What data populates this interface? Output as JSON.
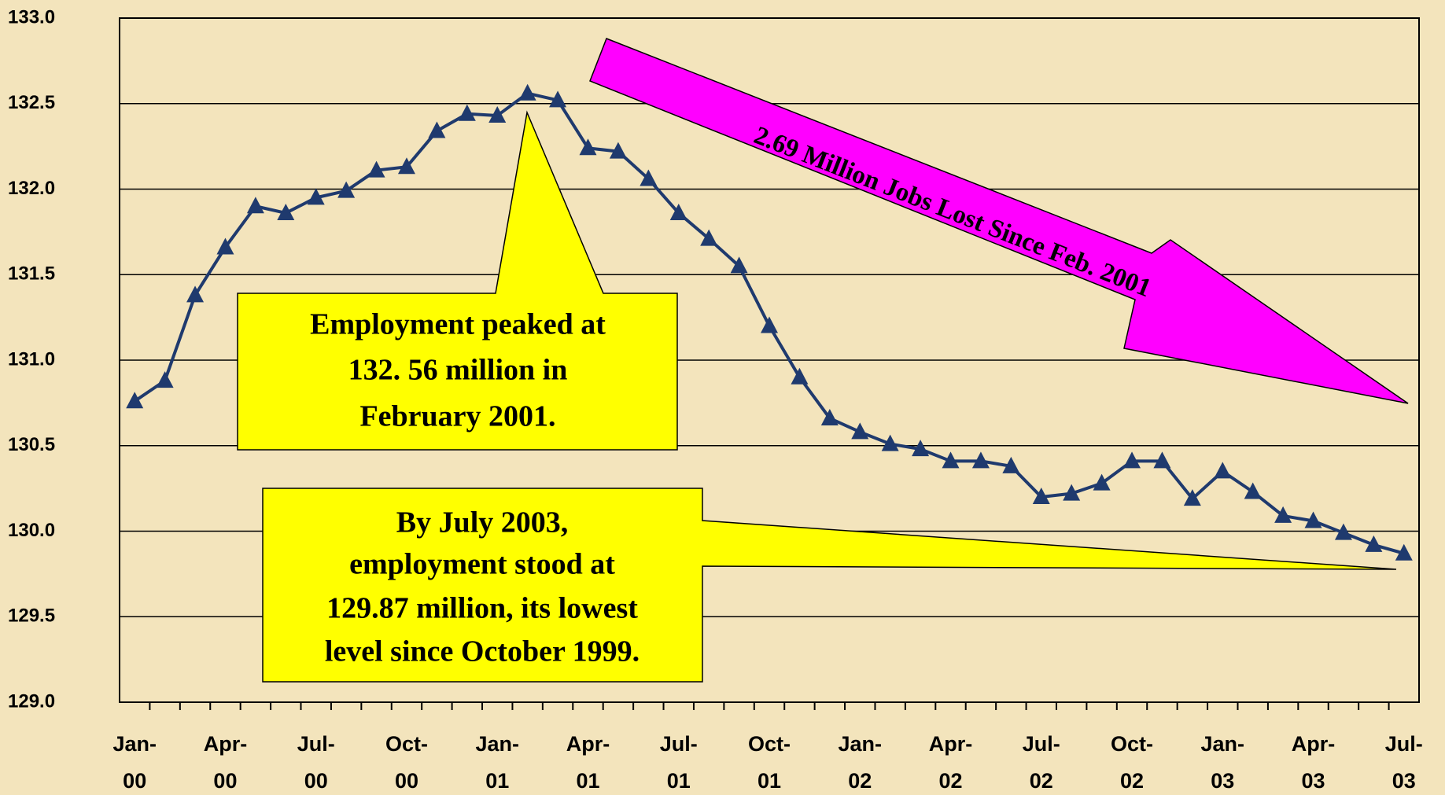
{
  "chart_data": {
    "type": "line",
    "categories": [
      "Jan- 00",
      null,
      null,
      "Apr- 00",
      null,
      null,
      "Jul- 00",
      null,
      null,
      "Oct- 00",
      null,
      null,
      "Jan- 01",
      null,
      null,
      "Apr- 01",
      null,
      null,
      "Jul- 01",
      null,
      null,
      "Oct- 01",
      null,
      null,
      "Jan- 02",
      null,
      null,
      "Apr- 02",
      null,
      null,
      "Jul- 02",
      null,
      null,
      "Oct- 02",
      null,
      null,
      "Jan- 03",
      null,
      null,
      "Apr- 03",
      null,
      null,
      "Jul- 03"
    ],
    "series": [
      {
        "color": "#1f3a6e",
        "values": [
          130.76,
          130.88,
          131.38,
          131.66,
          131.9,
          131.86,
          131.95,
          131.99,
          132.11,
          132.13,
          132.34,
          132.44,
          132.43,
          132.56,
          132.52,
          132.24,
          132.22,
          132.06,
          131.86,
          131.71,
          131.55,
          131.2,
          130.9,
          130.66,
          130.58,
          130.51,
          130.48,
          130.41,
          130.41,
          130.38,
          130.2,
          130.22,
          130.28,
          130.41,
          130.41,
          130.19,
          130.35,
          130.23,
          130.09,
          130.06,
          129.99,
          129.92,
          129.87
        ]
      }
    ],
    "ylim": [
      129.0,
      133.0
    ],
    "yticks": [
      {
        "value": 129.0,
        "label": "129.0"
      },
      {
        "value": 129.5,
        "label": "129.5"
      },
      {
        "value": 130.0,
        "label": "130.0"
      },
      {
        "value": 130.5,
        "label": "130.5"
      },
      {
        "value": 131.0,
        "label": "131.0"
      },
      {
        "value": 131.5,
        "label": "131.5"
      },
      {
        "value": 132.0,
        "label": "132.0"
      },
      {
        "value": 132.5,
        "label": "132.5"
      },
      {
        "value": 133.0,
        "label": "133.0"
      }
    ],
    "grid": true,
    "annotations": [
      {
        "lines": [
          "Employment peaked at",
          "132. 56 million in",
          "February 2001."
        ]
      },
      {
        "lines": [
          "By July 2003,",
          "employment stood at",
          "129.87 million, its lowest",
          "level since October 1999."
        ]
      },
      {
        "lines": [
          "2.69 Million Jobs Lost Since Feb. 2001"
        ]
      }
    ]
  }
}
